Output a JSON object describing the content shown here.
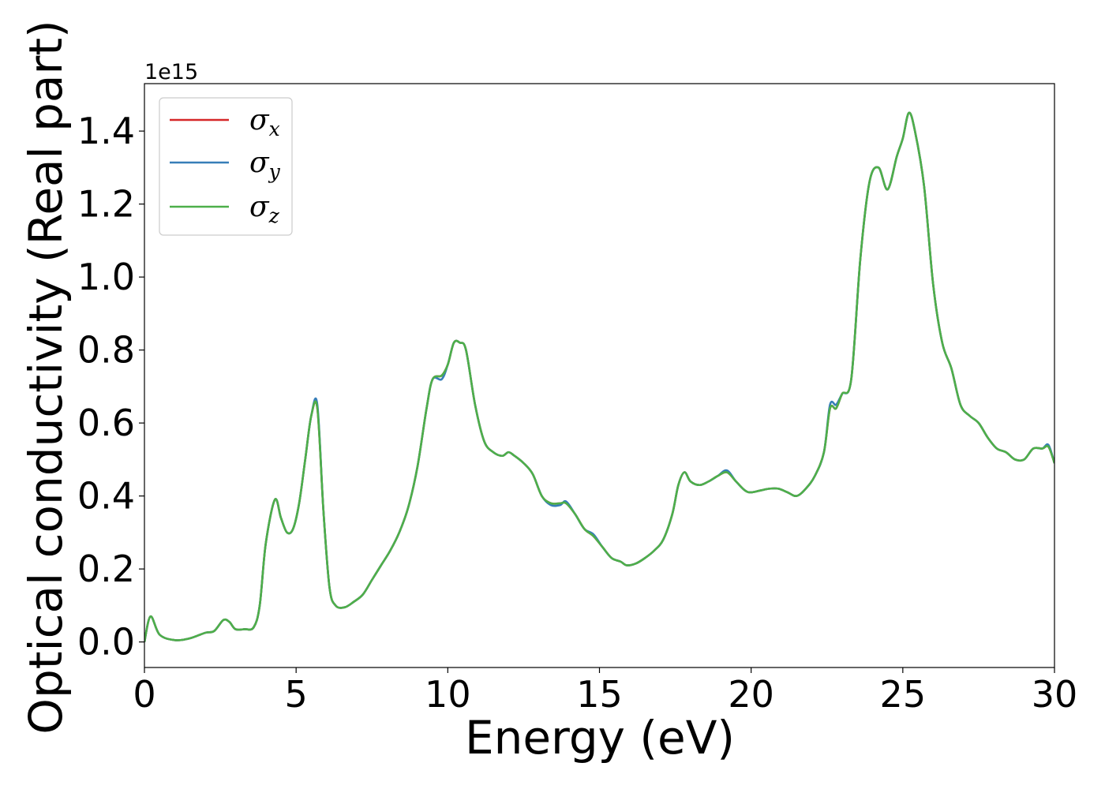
{
  "chart_data": {
    "type": "line",
    "title": "",
    "xlabel": "Energy (eV)",
    "ylabel": "Optical conductivity (Real part)",
    "y_offset_label": "1e15",
    "xlim": [
      0,
      30
    ],
    "ylim": [
      -0.07,
      1.53
    ],
    "xticks": [
      0,
      5,
      10,
      15,
      20,
      25,
      30
    ],
    "xtick_labels": [
      "0",
      "5",
      "10",
      "15",
      "20",
      "25",
      "30"
    ],
    "yticks": [
      0.0,
      0.2,
      0.4,
      0.6,
      0.8,
      1.0,
      1.2,
      1.4
    ],
    "ytick_labels": [
      "0.0",
      "0.2",
      "0.4",
      "0.6",
      "0.8",
      "1.0",
      "1.2",
      "1.4"
    ],
    "grid": false,
    "legend_position": "upper-left",
    "x": [
      0,
      0.2,
      0.5,
      1.0,
      1.5,
      2.0,
      2.3,
      2.6,
      2.8,
      3.0,
      3.3,
      3.6,
      3.8,
      4.0,
      4.3,
      4.5,
      4.7,
      4.9,
      5.1,
      5.3,
      5.5,
      5.7,
      5.9,
      6.1,
      6.3,
      6.6,
      6.9,
      7.2,
      7.5,
      7.8,
      8.1,
      8.4,
      8.7,
      9.0,
      9.3,
      9.5,
      9.8,
      10.0,
      10.2,
      10.4,
      10.6,
      10.9,
      11.2,
      11.5,
      11.8,
      12.0,
      12.2,
      12.5,
      12.8,
      13.1,
      13.4,
      13.7,
      13.9,
      14.2,
      14.5,
      14.8,
      15.1,
      15.4,
      15.7,
      15.9,
      16.2,
      16.5,
      16.8,
      17.1,
      17.4,
      17.6,
      17.8,
      18.0,
      18.3,
      18.6,
      18.9,
      19.2,
      19.5,
      19.8,
      20.0,
      20.3,
      20.6,
      20.9,
      21.2,
      21.5,
      21.8,
      22.1,
      22.4,
      22.6,
      22.8,
      23.0,
      23.3,
      23.6,
      23.9,
      24.2,
      24.5,
      24.8,
      25.0,
      25.2,
      25.4,
      25.7,
      26.0,
      26.3,
      26.6,
      26.9,
      27.2,
      27.5,
      27.8,
      28.1,
      28.4,
      28.7,
      29.0,
      29.3,
      29.6,
      29.8,
      30.0
    ],
    "series": [
      {
        "name": "σx",
        "color": "#d62728",
        "values": [
          0.0,
          0.07,
          0.02,
          0.005,
          0.01,
          0.025,
          0.03,
          0.06,
          0.055,
          0.035,
          0.035,
          0.04,
          0.1,
          0.27,
          0.39,
          0.34,
          0.3,
          0.31,
          0.38,
          0.5,
          0.62,
          0.64,
          0.36,
          0.15,
          0.1,
          0.095,
          0.11,
          0.13,
          0.17,
          0.21,
          0.25,
          0.3,
          0.37,
          0.48,
          0.64,
          0.72,
          0.73,
          0.76,
          0.82,
          0.82,
          0.8,
          0.65,
          0.55,
          0.52,
          0.51,
          0.52,
          0.51,
          0.49,
          0.46,
          0.4,
          0.38,
          0.38,
          0.38,
          0.35,
          0.31,
          0.29,
          0.26,
          0.23,
          0.22,
          0.21,
          0.215,
          0.23,
          0.25,
          0.28,
          0.35,
          0.43,
          0.465,
          0.44,
          0.43,
          0.44,
          0.455,
          0.465,
          0.44,
          0.415,
          0.41,
          0.415,
          0.42,
          0.42,
          0.41,
          0.4,
          0.42,
          0.455,
          0.52,
          0.64,
          0.64,
          0.68,
          0.72,
          1.05,
          1.26,
          1.3,
          1.24,
          1.33,
          1.38,
          1.45,
          1.4,
          1.25,
          0.98,
          0.82,
          0.75,
          0.65,
          0.62,
          0.6,
          0.56,
          0.53,
          0.52,
          0.5,
          0.5,
          0.53,
          0.53,
          0.535,
          0.49
        ]
      },
      {
        "name": "σy",
        "color": "#377eb8",
        "values": [
          0.0,
          0.07,
          0.02,
          0.005,
          0.01,
          0.025,
          0.03,
          0.06,
          0.055,
          0.035,
          0.035,
          0.04,
          0.1,
          0.27,
          0.39,
          0.34,
          0.3,
          0.31,
          0.38,
          0.5,
          0.62,
          0.65,
          0.36,
          0.15,
          0.1,
          0.095,
          0.11,
          0.13,
          0.17,
          0.21,
          0.25,
          0.3,
          0.37,
          0.48,
          0.64,
          0.72,
          0.72,
          0.76,
          0.82,
          0.82,
          0.8,
          0.65,
          0.55,
          0.52,
          0.51,
          0.52,
          0.51,
          0.49,
          0.46,
          0.4,
          0.375,
          0.375,
          0.385,
          0.35,
          0.31,
          0.295,
          0.26,
          0.23,
          0.22,
          0.21,
          0.215,
          0.23,
          0.25,
          0.28,
          0.35,
          0.43,
          0.465,
          0.44,
          0.43,
          0.44,
          0.455,
          0.47,
          0.44,
          0.415,
          0.41,
          0.415,
          0.42,
          0.42,
          0.41,
          0.4,
          0.42,
          0.455,
          0.52,
          0.65,
          0.65,
          0.68,
          0.72,
          1.05,
          1.26,
          1.3,
          1.24,
          1.33,
          1.38,
          1.45,
          1.4,
          1.25,
          0.98,
          0.82,
          0.75,
          0.65,
          0.62,
          0.6,
          0.56,
          0.53,
          0.52,
          0.5,
          0.5,
          0.53,
          0.53,
          0.54,
          0.49
        ]
      },
      {
        "name": "σz",
        "color": "#4daf4a",
        "values": [
          0.0,
          0.07,
          0.02,
          0.005,
          0.01,
          0.025,
          0.03,
          0.06,
          0.055,
          0.035,
          0.035,
          0.04,
          0.1,
          0.27,
          0.39,
          0.34,
          0.3,
          0.31,
          0.38,
          0.5,
          0.62,
          0.64,
          0.36,
          0.15,
          0.1,
          0.095,
          0.11,
          0.13,
          0.17,
          0.21,
          0.25,
          0.3,
          0.37,
          0.48,
          0.64,
          0.72,
          0.73,
          0.76,
          0.82,
          0.82,
          0.8,
          0.65,
          0.55,
          0.52,
          0.51,
          0.52,
          0.51,
          0.49,
          0.46,
          0.4,
          0.38,
          0.38,
          0.38,
          0.35,
          0.31,
          0.29,
          0.26,
          0.23,
          0.22,
          0.21,
          0.215,
          0.23,
          0.25,
          0.28,
          0.35,
          0.43,
          0.465,
          0.44,
          0.43,
          0.44,
          0.455,
          0.465,
          0.44,
          0.415,
          0.41,
          0.415,
          0.42,
          0.42,
          0.41,
          0.4,
          0.42,
          0.455,
          0.52,
          0.64,
          0.64,
          0.68,
          0.72,
          1.05,
          1.26,
          1.3,
          1.24,
          1.33,
          1.38,
          1.45,
          1.4,
          1.25,
          0.98,
          0.82,
          0.75,
          0.65,
          0.62,
          0.6,
          0.56,
          0.53,
          0.52,
          0.5,
          0.5,
          0.53,
          0.53,
          0.535,
          0.49
        ]
      }
    ]
  }
}
